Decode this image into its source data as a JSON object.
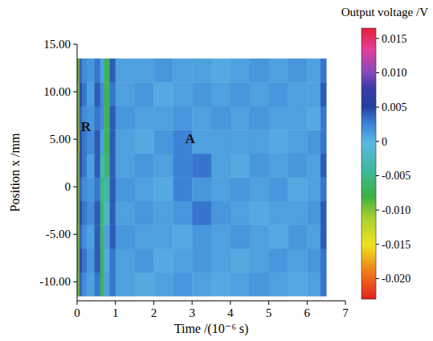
{
  "chart_data": {
    "type": "heatmap",
    "x_label": "Time /(10⁻⁶ s)",
    "y_label": "Position x /mm",
    "colorbar_label": "Output voltage /V",
    "xlim": [
      0,
      7
    ],
    "xticks": [
      0,
      1,
      2,
      3,
      4,
      5,
      6,
      7
    ],
    "ylim": [
      -12,
      15
    ],
    "yticks": [
      {
        "value": 15,
        "label": "15.00"
      },
      {
        "value": 10,
        "label": "10.00"
      },
      {
        "value": 5,
        "label": "5.00"
      },
      0,
      {
        "value": -5,
        "label": "-5.00"
      },
      {
        "value": -10,
        "label": "-10.00"
      }
    ],
    "x_edges": [
      0,
      0.03,
      0.07,
      0.12,
      0.25,
      0.45,
      0.6,
      0.7,
      0.85,
      1.0,
      1.5,
      2,
      2.5,
      3,
      3.5,
      4,
      4.5,
      5,
      5.5,
      6,
      6.35,
      6.5
    ],
    "y_edges": [
      -11.5,
      -9,
      -6.5,
      -4,
      -1.5,
      1,
      3.5,
      6,
      8.5,
      11,
      13.5
    ],
    "cells": [
      [
        -0.018,
        -0.008,
        0.004,
        0.002,
        0.001,
        0.003,
        -0.007,
        0.001,
        0.003,
        0.001,
        0.0005,
        0.001,
        0.0015,
        0.001,
        0.0005,
        0.001,
        0.0015,
        0.001,
        0.0005,
        0.001,
        0.003
      ],
      [
        -0.019,
        -0.007,
        0.005,
        0.003,
        0.0015,
        0.004,
        -0.007,
        0.0005,
        0.003,
        0.001,
        0.0015,
        0.0005,
        0.001,
        0.0015,
        0.001,
        0.0005,
        0.001,
        0.0015,
        0.001,
        0.0015,
        0.003
      ],
      [
        -0.018,
        -0.008,
        0.004,
        0.002,
        0.001,
        0.004,
        -0.006,
        0.001,
        0.004,
        0.0015,
        0.001,
        0.001,
        0.0005,
        0.0015,
        0.001,
        0.0015,
        0.001,
        0.0005,
        0.0015,
        0.001,
        0.004
      ],
      [
        -0.02,
        -0.007,
        0.005,
        0.003,
        0.002,
        0.004,
        -0.006,
        -0.002,
        0.004,
        0.001,
        0.0015,
        0.001,
        0.0015,
        0.003,
        0.0015,
        0.001,
        0.0005,
        0.001,
        0.001,
        0.0015,
        0.004
      ],
      [
        -0.019,
        -0.008,
        0.004,
        0.002,
        0.0015,
        0.003,
        -0.005,
        -0.004,
        0.004,
        0.0015,
        0.001,
        0.0005,
        0.0025,
        0.0015,
        0.001,
        0.0015,
        0.001,
        0.0015,
        0.0005,
        0.001,
        0.003
      ],
      [
        -0.018,
        -0.007,
        0.005,
        0.003,
        0.001,
        0.004,
        -0.003,
        -0.006,
        0.004,
        0.001,
        0.0015,
        0.001,
        0.0025,
        0.003,
        0.001,
        0.0005,
        0.0015,
        0.001,
        0.0015,
        0.001,
        0.004
      ],
      [
        -0.02,
        -0.009,
        0.005,
        0.003,
        0.002,
        0.004,
        0.001,
        -0.007,
        0.004,
        0.001,
        0.0005,
        0.0015,
        0.0025,
        0.001,
        0.001,
        0.001,
        0.001,
        0.0005,
        0.001,
        0.0015,
        0.003
      ],
      [
        -0.019,
        -0.008,
        0.004,
        0.002,
        0.0015,
        0.003,
        0.002,
        -0.007,
        0.004,
        0.0015,
        0.001,
        0.001,
        0.0015,
        0.001,
        0.0015,
        0.001,
        0.0015,
        0.001,
        0.001,
        0.0005,
        0.003
      ],
      [
        -0.018,
        -0.007,
        0.005,
        0.003,
        0.001,
        0.004,
        0.002,
        -0.007,
        0.003,
        0.001,
        0.0015,
        0.0005,
        0.001,
        0.0015,
        0.001,
        0.0015,
        0.001,
        0.0015,
        0.001,
        0.001,
        0.004
      ],
      [
        -0.02,
        -0.008,
        0.004,
        0.002,
        0.0015,
        0.003,
        0.001,
        -0.007,
        0.004,
        0.001,
        0.001,
        0.0015,
        0.001,
        0.001,
        0.0005,
        0.001,
        0.0015,
        0.001,
        0.0015,
        0.001,
        0.003
      ]
    ],
    "colorbar_range": [
      -0.023,
      0.0165
    ],
    "colorbar_ticks": [
      0.015,
      {
        "value": 0.01,
        "label": "0.010"
      },
      0.005,
      0,
      -0.005,
      {
        "value": -0.01,
        "label": "-0.010"
      },
      -0.015,
      {
        "value": -0.02,
        "label": "-0.020"
      }
    ],
    "annotations": [
      {
        "text": "R",
        "x": 0.23,
        "y": 6.4
      },
      {
        "text": "A",
        "x": 2.95,
        "y": 5.1
      }
    ]
  }
}
